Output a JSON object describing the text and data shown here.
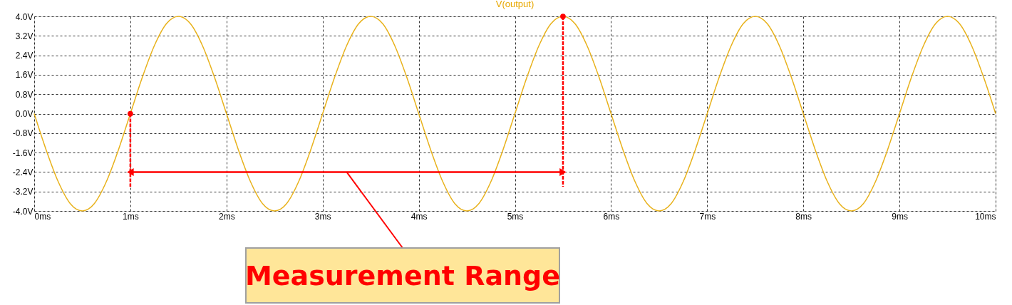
{
  "chart_data": {
    "type": "line",
    "title": "V(output)",
    "xlim": [
      0,
      10
    ],
    "ylim": [
      -4,
      4
    ],
    "xticks": [
      {
        "value": 0,
        "label": "0ms"
      },
      {
        "value": 1,
        "label": "1ms"
      },
      {
        "value": 2,
        "label": "2ms"
      },
      {
        "value": 3,
        "label": "3ms"
      },
      {
        "value": 4,
        "label": "4ms"
      },
      {
        "value": 5,
        "label": "5ms"
      },
      {
        "value": 6,
        "label": "6ms"
      },
      {
        "value": 7,
        "label": "7ms"
      },
      {
        "value": 8,
        "label": "8ms"
      },
      {
        "value": 9,
        "label": "9ms"
      },
      {
        "value": 10,
        "label": "10ms"
      }
    ],
    "yticks": [
      {
        "value": -4,
        "label": "-4.0V"
      },
      {
        "value": -3.2,
        "label": "-3.2V"
      },
      {
        "value": -2.4,
        "label": "-2.4V"
      },
      {
        "value": -1.6,
        "label": "-1.6V"
      },
      {
        "value": -0.8,
        "label": "-0.8V"
      },
      {
        "value": 0,
        "label": "0.0V"
      },
      {
        "value": 0.8,
        "label": "0.8V"
      },
      {
        "value": 1.6,
        "label": "1.6V"
      },
      {
        "value": 2.4,
        "label": "2.4V"
      },
      {
        "value": 3.2,
        "label": "3.2V"
      },
      {
        "value": 4,
        "label": "4.0V"
      }
    ],
    "grid": true,
    "line_style": "solid",
    "series": [
      {
        "type": "line",
        "color": "#e8b21c",
        "x": [
          0,
          0.125,
          0.25,
          0.375,
          0.5,
          0.625,
          0.75,
          0.875,
          1,
          1.125,
          1.25,
          1.375,
          1.5,
          1.625,
          1.75,
          1.875,
          2,
          2.125,
          2.25,
          2.375,
          2.5,
          2.625,
          2.75,
          2.875,
          3,
          3.125,
          3.25,
          3.375,
          3.5,
          3.625,
          3.75,
          3.875,
          4,
          4.125,
          4.25,
          4.375,
          4.5,
          4.625,
          4.75,
          4.875,
          5,
          5.125,
          5.25,
          5.375,
          5.5,
          5.625,
          5.75,
          5.875,
          6,
          6.125,
          6.25,
          6.375,
          6.5,
          6.625,
          6.75,
          6.875,
          7,
          7.125,
          7.25,
          7.375,
          7.5,
          7.625,
          7.75,
          7.875,
          8,
          8.125,
          8.25,
          8.375,
          8.5,
          8.625,
          8.75,
          8.875,
          9,
          9.125,
          9.25,
          9.375,
          9.5,
          9.625,
          9.75,
          9.875,
          10
        ],
        "values": [
          0,
          -1.5,
          -2.8,
          -3.7,
          -4,
          -3.7,
          -2.8,
          -1.5,
          0,
          1.5,
          2.8,
          3.7,
          4,
          3.7,
          2.8,
          1.5,
          0,
          -1.5,
          -2.8,
          -3.7,
          -4,
          -3.7,
          -2.8,
          -1.5,
          0,
          1.5,
          2.8,
          3.7,
          4,
          3.7,
          2.8,
          1.5,
          0,
          -1.5,
          -2.8,
          -3.7,
          -4,
          -3.7,
          -2.8,
          -1.5,
          0,
          1.5,
          2.8,
          3.7,
          4,
          3.7,
          2.8,
          1.5,
          0,
          -1.5,
          -2.8,
          -3.7,
          -4,
          -3.7,
          -2.8,
          -1.5,
          0,
          1.5,
          2.8,
          3.7,
          4,
          3.7,
          2.8,
          1.5,
          0,
          -1.5,
          -2.8,
          -3.7,
          -4,
          -3.7,
          -2.8,
          -1.5,
          0,
          1.5,
          2.8,
          3.7,
          4,
          3.7,
          2.8,
          1.5,
          0
        ]
      },
      {
        "type": "line",
        "line_style": "dashed",
        "color": "#ff0000",
        "x": [
          1,
          1
        ],
        "values": [
          0,
          -3
        ]
      },
      {
        "type": "line",
        "line_style": "dashed",
        "color": "#ff0000",
        "x": [
          5.5,
          5.5
        ],
        "values": [
          4,
          -3
        ]
      },
      {
        "type": "line",
        "line_style": "solid",
        "marker": "triangle",
        "color": "#ff0000",
        "x": [
          1,
          5.5
        ],
        "values": [
          -2.4,
          -2.4
        ]
      },
      {
        "type": "scatter",
        "marker": "circle",
        "color": "#ff0000",
        "x": [
          1,
          5.5
        ],
        "values": [
          0,
          4
        ]
      }
    ],
    "annotations": [
      {
        "text": "Measurement Range",
        "x": 3.25,
        "y": -2.4
      }
    ]
  }
}
